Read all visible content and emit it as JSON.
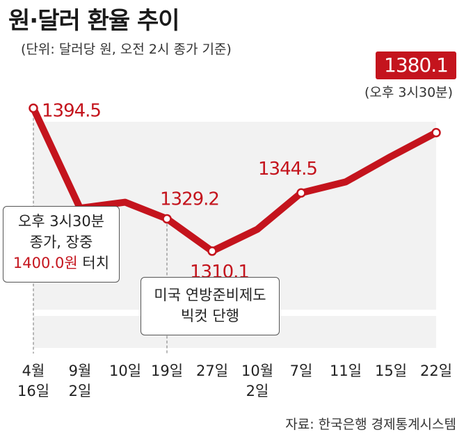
{
  "title": "원·달러 환율 추이",
  "unit_note": "(단위: 달러당 원, 오전 2시 종가 기준)",
  "source": "자료: 한국은행 경제통계시스템",
  "latest": {
    "value": "1380.1",
    "note": "(오후 3시30분)"
  },
  "callout_1": {
    "line1": "오후 3시30분",
    "line2": "종가, 장중",
    "red_value": "1400.0원",
    "tail": " 터치"
  },
  "callout_2": {
    "line1": "미국 연방준비제도",
    "line2": "빅컷 단행"
  },
  "colors": {
    "line": "#c4141d",
    "label": "#c4141d",
    "band": "#f2f2f2"
  },
  "chart_data": {
    "type": "line",
    "title": "원·달러 환율 추이",
    "categories": [
      "4월 16일",
      "9월 2일",
      "10일",
      "19일",
      "27일",
      "10월 2일",
      "7일",
      "11일",
      "15일",
      "22일"
    ],
    "tick_labels": [
      [
        "4월",
        "16일"
      ],
      [
        "9월",
        "2일"
      ],
      [
        "10일"
      ],
      [
        "19일"
      ],
      [
        "27일"
      ],
      [
        "10월",
        "2일"
      ],
      [
        "7일"
      ],
      [
        "11일"
      ],
      [
        "15일"
      ],
      [
        "22일"
      ]
    ],
    "values": [
      1394.5,
      1335.5,
      1339.0,
      1329.2,
      1310.1,
      1323.0,
      1344.5,
      1351.0,
      1366.0,
      1380.1
    ],
    "data_labels": [
      {
        "index": 0,
        "text": "1394.5"
      },
      {
        "index": 3,
        "text": "1329.2"
      },
      {
        "index": 4,
        "text": "1310.1"
      },
      {
        "index": 6,
        "text": "1344.5"
      }
    ],
    "ylim": [
      1255,
      1405
    ],
    "grid": false
  }
}
